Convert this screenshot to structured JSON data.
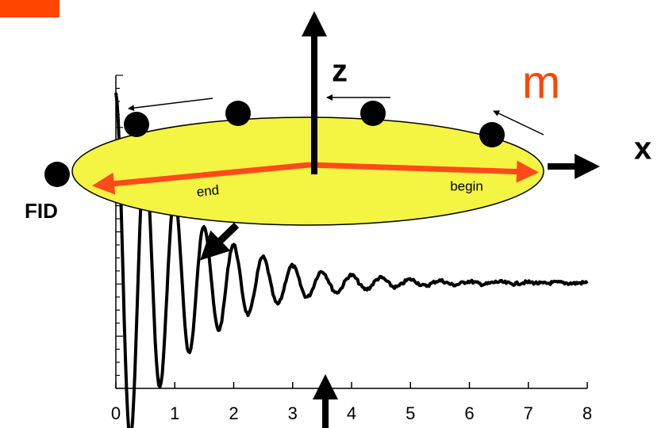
{
  "labels": {
    "z": "z",
    "m": "m",
    "x": "x",
    "fid": "FID",
    "end": "end",
    "begin": "begin"
  },
  "axis": {
    "xlim": [
      0,
      8
    ],
    "xticks": [
      0,
      1,
      2,
      3,
      4,
      5,
      6,
      7,
      8
    ]
  }
}
